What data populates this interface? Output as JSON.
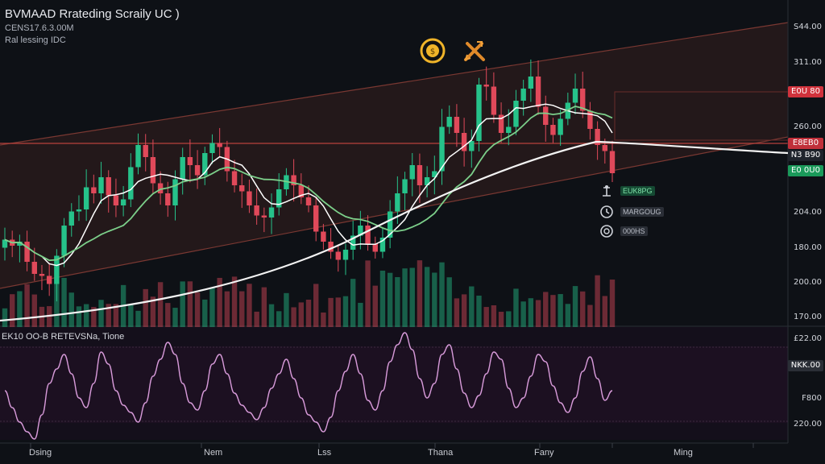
{
  "header": {
    "title": "BVMAAD Rrateding Scraily UC )",
    "sub1": "CENS17.6.3.00M",
    "sub2": "Ral lessing IDC"
  },
  "indicator_label": "EK10 OO-B RETEVSNa, Tione",
  "price_axis": [
    "S44.00",
    "311.00",
    "260.00",
    "204.00",
    "180.00",
    "200.00",
    "170.00"
  ],
  "indicator_axis": [
    "£22.00",
    "F800",
    "220.00"
  ],
  "tags": [
    {
      "text": "E0U 80",
      "color": "#d0323c"
    },
    {
      "text": "E8EB0",
      "color": "#c0303a"
    },
    {
      "text": "N3 B90",
      "color": "#1f242c"
    },
    {
      "text": "E0 0U0",
      "color": "#1a9a5a"
    },
    {
      "text": "NKK.00",
      "color": "#2a2e36"
    }
  ],
  "side_labels": [
    "EUK8PG",
    "MARGOUG",
    "000HS"
  ],
  "x_axis": [
    "Dsing",
    "Nem",
    "Lss",
    "Thana",
    "Fany",
    "Ming"
  ],
  "icons": [
    "coin-icon",
    "crossed-tools-icon",
    "scale-icon",
    "refresh-icon",
    "clock-icon"
  ],
  "colors": {
    "up": "#26c28a",
    "down": "#e0495a",
    "ma_fast": "#ffffff",
    "ma_mid": "#7ccf8a",
    "ma_slow": "#f3f3f3",
    "channel": "#5a2a26",
    "rsi": "#d79ad9"
  },
  "chart_data": {
    "type": "line",
    "candles_close": [
      215,
      212,
      214,
      204,
      198,
      197,
      193,
      207,
      222,
      229,
      230,
      241,
      238,
      246,
      237,
      232,
      235,
      251,
      262,
      256,
      243,
      238,
      232,
      245,
      256,
      252,
      247,
      258,
      263,
      261,
      249,
      242,
      239,
      232,
      227,
      226,
      231,
      240,
      247,
      242,
      236,
      232,
      219,
      214,
      209,
      205,
      210,
      217,
      222,
      213,
      209,
      216,
      229,
      238,
      245,
      252,
      242,
      246,
      249,
      271,
      276,
      268,
      259,
      264,
      292,
      291,
      277,
      268,
      271,
      284,
      290,
      296,
      281,
      272,
      267,
      275,
      283,
      290,
      279,
      270,
      262,
      259,
      248
    ],
    "rsi": [
      55,
      48,
      42,
      38,
      35,
      45,
      58,
      64,
      70,
      62,
      52,
      48,
      58,
      71,
      66,
      55,
      49,
      46,
      42,
      50,
      61,
      68,
      75,
      70,
      58,
      50,
      47,
      55,
      66,
      70,
      62,
      54,
      49,
      46,
      43,
      48,
      56,
      62,
      68,
      60,
      52,
      45,
      42,
      38,
      44,
      55,
      63,
      70,
      62,
      51,
      47,
      55,
      67,
      74,
      79,
      72,
      60,
      52,
      58,
      70,
      74,
      64,
      54,
      48,
      53,
      62,
      71,
      68,
      56,
      48,
      52,
      61,
      70,
      67,
      57,
      50,
      46,
      52,
      63,
      69,
      60,
      51,
      55
    ],
    "price_ticks": [
      "S44.00",
      "311.00",
      "260.00",
      "204.00",
      "180.00",
      "200.00",
      "170.00"
    ],
    "x_ticks": [
      "Dsing",
      "Nem",
      "Lss",
      "Thana",
      "Fany",
      "Ming"
    ]
  }
}
